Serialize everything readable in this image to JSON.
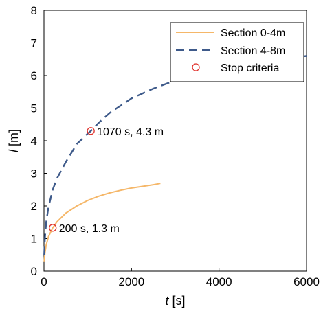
{
  "chart_data": {
    "type": "line",
    "xlabel_var": "t",
    "xlabel_unit": " [s]",
    "ylabel_var": "l",
    "ylabel_unit": " [m]",
    "xlim": [
      0,
      6000
    ],
    "ylim": [
      0,
      8
    ],
    "xticks": [
      0,
      2000,
      4000,
      6000
    ],
    "yticks": [
      0,
      1,
      2,
      3,
      4,
      5,
      6,
      7,
      8
    ],
    "grid": false,
    "legend_position": "top-right",
    "series": [
      {
        "name": "Section 0-4m",
        "color": "#F5B769",
        "style": "solid",
        "x": [
          5,
          20,
          50,
          100,
          200,
          300,
          500,
          750,
          1000,
          1250,
          1500,
          1750,
          2000,
          2250,
          2500,
          2660
        ],
        "y": [
          0.3,
          0.55,
          0.8,
          1.05,
          1.33,
          1.52,
          1.78,
          2.0,
          2.17,
          2.3,
          2.4,
          2.48,
          2.55,
          2.6,
          2.65,
          2.69
        ]
      },
      {
        "name": "Section 4-8m",
        "color": "#3E5A8A",
        "style": "dashed",
        "x": [
          5,
          20,
          50,
          100,
          200,
          300,
          500,
          750,
          1000,
          1070,
          1250,
          1500,
          2000,
          2500,
          3000,
          3500,
          4000,
          4500,
          5000,
          5500,
          6000
        ],
        "y": [
          0.5,
          1.0,
          1.5,
          1.95,
          2.5,
          2.85,
          3.35,
          3.9,
          4.22,
          4.3,
          4.55,
          4.85,
          5.3,
          5.6,
          5.85,
          6.05,
          6.2,
          6.32,
          6.43,
          6.52,
          6.6
        ]
      }
    ],
    "stop_criteria": {
      "name": "Stop criteria",
      "color": "#E0302A",
      "points": [
        {
          "x": 200,
          "y": 1.33,
          "label": "200 s, 1.3 m"
        },
        {
          "x": 1070,
          "y": 4.3,
          "label": "1070 s, 4.3 m"
        }
      ]
    }
  }
}
